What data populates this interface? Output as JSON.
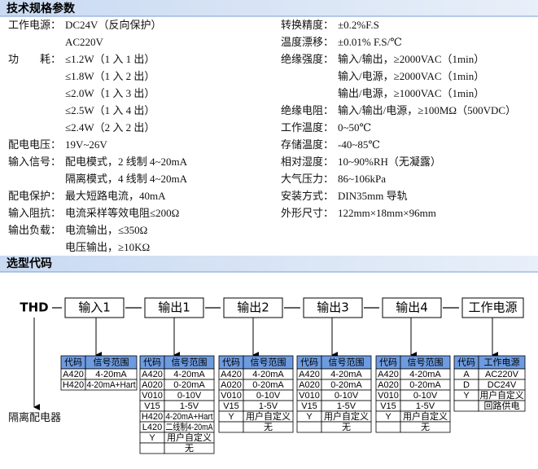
{
  "specs": {
    "title": "技术规格参数",
    "left": [
      {
        "label": "工作电源：",
        "value": "DC24V（反向保护）"
      },
      {
        "value": "AC220V"
      },
      {
        "label": "功　　耗：",
        "value": "≤1.2W（1 入 1 出）"
      },
      {
        "value": "≤1.8W（1 入 2 出）"
      },
      {
        "value": "≤2.0W（1 入 3 出）"
      },
      {
        "value": "≤2.5W（1 入 4 出）"
      },
      {
        "value": "≤2.4W（2 入 2 出）"
      },
      {
        "label": "配电电压：",
        "value": "19V~26V"
      },
      {
        "label": "输入信号：",
        "value": "配电模式，2 线制 4~20mA"
      },
      {
        "value": "隔离模式，4 线制 4~20mA"
      },
      {
        "label": "配电保护：",
        "value": "最大短路电流，40mA"
      },
      {
        "label": "输入阻抗：",
        "value": "电流采样等效电阻≤200Ω"
      },
      {
        "label": "输出负载：",
        "value": "电流输出，≤350Ω"
      },
      {
        "value": "电压输出，≥10KΩ"
      }
    ],
    "right": [
      {
        "label": "转换精度：",
        "value": "±0.2%F.S"
      },
      {
        "label": "温度漂移：",
        "value": "±0.01% F.S/℃"
      },
      {
        "label": "绝缘强度：",
        "value": "输入/输出，≥2000VAC（1min）"
      },
      {
        "value": "输入/电源，≥2000VAC（1min）"
      },
      {
        "value": "输出/电源，≥1000VAC（1min）"
      },
      {
        "label": "绝缘电阻：",
        "value": "输入/输出/电源，≥100MΩ（500VDC）"
      },
      {
        "label": "工作温度：",
        "value": "0~50℃"
      },
      {
        "label": "存储温度：",
        "value": "-40~85℃"
      },
      {
        "label": "相对湿度：",
        "value": "10~90%RH（无凝露）"
      },
      {
        "label": "大气压力：",
        "value": "86~106kPa"
      },
      {
        "label": "安装方式：",
        "value": "DIN35mm 导轨"
      },
      {
        "label": "外形尺寸：",
        "value": "122mm×18mm×96mm"
      }
    ]
  },
  "selection": {
    "title": "选型代码",
    "prefix": "THD",
    "note": "隔离配电器",
    "boxes": [
      "输入1",
      "输出1",
      "输出2",
      "输出3",
      "输出4",
      "工作电源"
    ],
    "tables": [
      {
        "headers": [
          "代码",
          "信号范围"
        ],
        "rows": [
          {
            "code": "A420",
            "value": "4-20mA"
          },
          {
            "code": "H420",
            "value": "4-20mA+Hart"
          }
        ]
      },
      {
        "headers": [
          "代码",
          "信号范围"
        ],
        "rows": [
          {
            "code": "A420",
            "value": "4-20mA"
          },
          {
            "code": "A020",
            "value": "0-20mA"
          },
          {
            "code": "V010",
            "value": "0-10V"
          },
          {
            "code": "V15",
            "value": "1-5V"
          },
          {
            "code": "H420",
            "value": "4-20mA+Hart"
          },
          {
            "code": "L420",
            "value": "二线制4-20mA"
          },
          {
            "code": "Y",
            "value": "用户自定义"
          },
          {
            "value": "无"
          }
        ]
      },
      {
        "headers": [
          "代码",
          "信号范围"
        ],
        "rows": [
          {
            "code": "A420",
            "value": "4-20mA"
          },
          {
            "code": "A020",
            "value": "0-20mA"
          },
          {
            "code": "V010",
            "value": "0-10V"
          },
          {
            "code": "V15",
            "value": "1-5V"
          },
          {
            "code": "Y",
            "value": "用户自定义"
          },
          {
            "value": "无"
          }
        ]
      },
      {
        "headers": [
          "代码",
          "信号范围"
        ],
        "rows": [
          {
            "code": "A420",
            "value": "4-20mA"
          },
          {
            "code": "A020",
            "value": "0-20mA"
          },
          {
            "code": "V010",
            "value": "0-10V"
          },
          {
            "code": "V15",
            "value": "1-5V"
          },
          {
            "code": "Y",
            "value": "用户自定义"
          },
          {
            "value": "无"
          }
        ]
      },
      {
        "headers": [
          "代码",
          "信号范围"
        ],
        "rows": [
          {
            "code": "A420",
            "value": "4-20mA"
          },
          {
            "code": "A020",
            "value": "0-20mA"
          },
          {
            "code": "V010",
            "value": "0-10V"
          },
          {
            "code": "V15",
            "value": "1-5V"
          },
          {
            "code": "Y",
            "value": "用户自定义"
          },
          {
            "value": "无"
          }
        ]
      },
      {
        "headers": [
          "代码",
          "工作电源"
        ],
        "rows": [
          {
            "code": "A",
            "value": "AC220V"
          },
          {
            "code": "D",
            "value": "DC24V"
          },
          {
            "code": "Y",
            "value": "用户自定义"
          },
          {
            "value": "回路供电"
          }
        ]
      }
    ]
  }
}
